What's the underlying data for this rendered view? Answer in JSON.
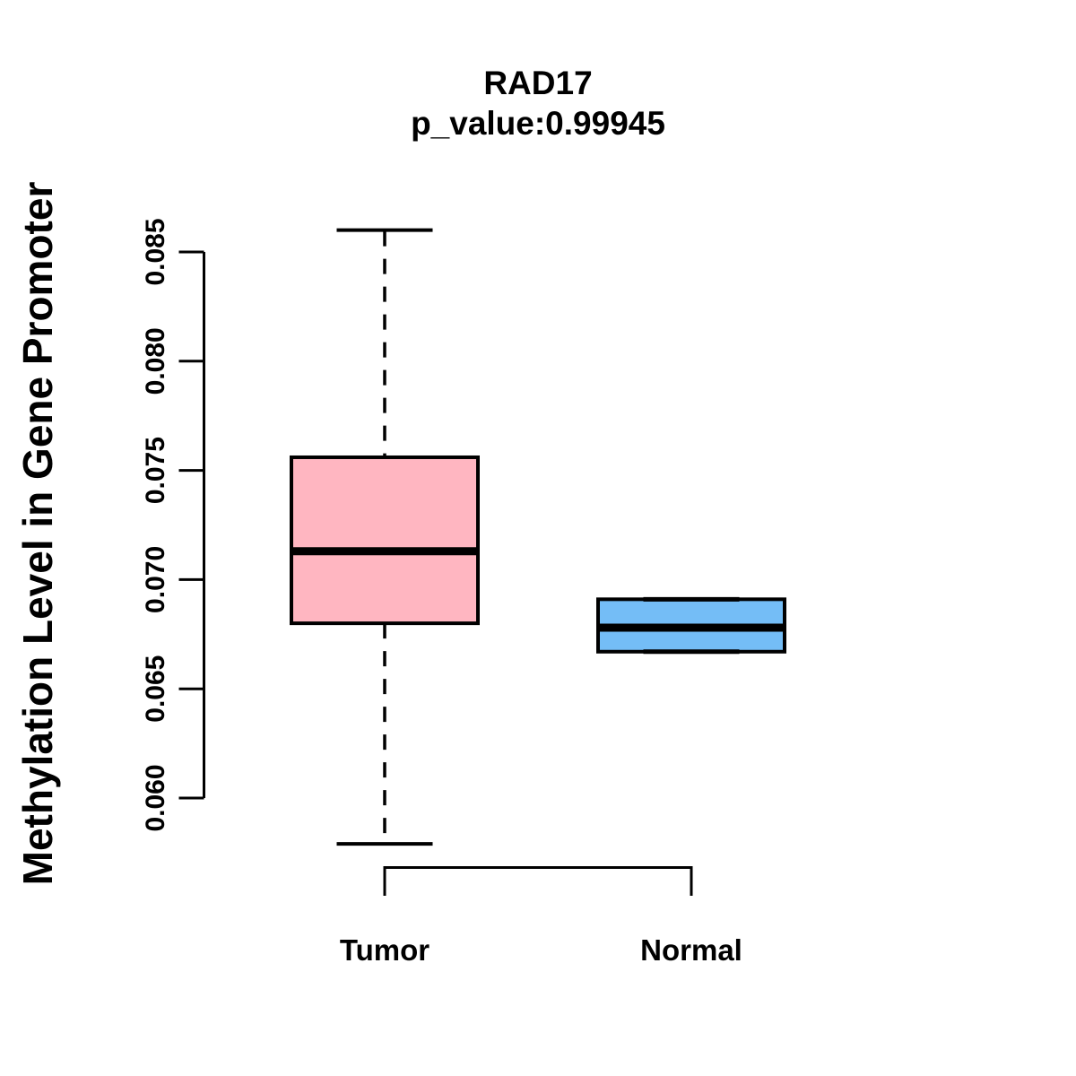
{
  "chart_data": {
    "type": "boxplot",
    "title": "RAD17",
    "subtitle": "p_value:0.99945",
    "ylabel": "Methylation Level in Gene Promoter",
    "xlabel": "",
    "y_ticks": [
      "0.060",
      "0.065",
      "0.070",
      "0.075",
      "0.080",
      "0.085"
    ],
    "ylim": [
      0.0579,
      0.086
    ],
    "grid": false,
    "legend": "none",
    "categories": [
      "Tumor",
      "Normal"
    ],
    "series": [
      {
        "name": "Tumor",
        "color": "#FFB6C1",
        "whisker_low": 0.0579,
        "q1": 0.068,
        "median": 0.0713,
        "q3": 0.0756,
        "whisker_high": 0.086
      },
      {
        "name": "Normal",
        "color": "#74BDF6",
        "whisker_low": 0.0667,
        "q1": 0.0667,
        "median": 0.0678,
        "q3": 0.0691,
        "whisker_high": 0.0691
      }
    ],
    "colors": {
      "box_border": "#000000",
      "axis": "#000000",
      "text": "#000000"
    }
  }
}
